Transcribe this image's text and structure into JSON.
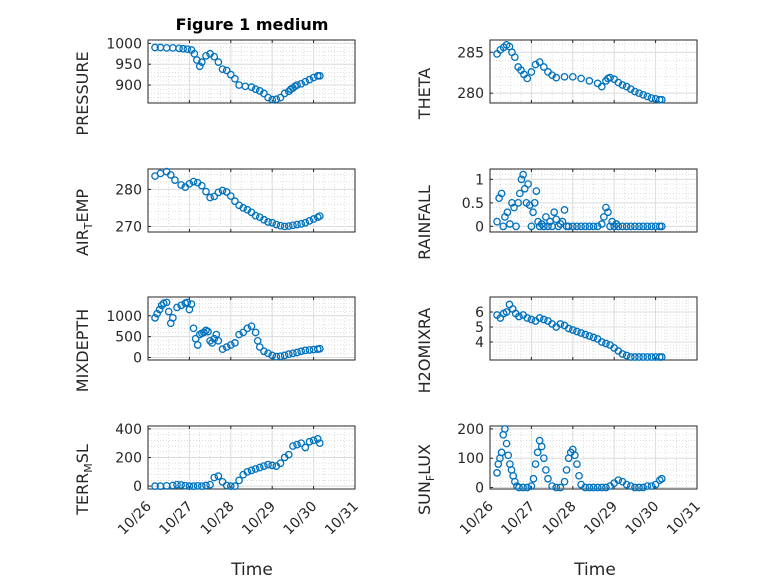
{
  "figure": {
    "title": "Figure 1 medium",
    "xlabel": "Time"
  },
  "chart_data": [
    {
      "type": "scatter",
      "ylabel": "PRESSURE",
      "ylim": [
        857,
        1008
      ],
      "yticks": [
        900,
        950,
        1000
      ],
      "x": [
        0.17,
        0.3,
        0.45,
        0.6,
        0.75,
        0.85,
        0.95,
        1.05,
        1.12,
        1.18,
        1.25,
        1.3,
        1.4,
        1.5,
        1.6,
        1.7,
        1.8,
        1.9,
        2.0,
        2.1,
        2.2,
        2.35,
        2.5,
        2.6,
        2.7,
        2.8,
        2.9,
        3.0,
        3.1,
        3.2,
        3.3,
        3.4,
        3.45,
        3.5,
        3.55,
        3.6,
        3.7,
        3.8,
        3.9,
        4.0,
        4.1,
        4.15
      ],
      "y": [
        990,
        990,
        989,
        989,
        988,
        987,
        986,
        984,
        975,
        960,
        945,
        955,
        970,
        975,
        968,
        955,
        938,
        935,
        925,
        915,
        900,
        897,
        895,
        890,
        886,
        880,
        870,
        865,
        866,
        870,
        880,
        885,
        890,
        893,
        897,
        900,
        903,
        908,
        913,
        918,
        922,
        922
      ]
    },
    {
      "type": "scatter",
      "ylabel": "THETA",
      "ylim": [
        278.8,
        286.5
      ],
      "yticks": [
        280,
        285
      ],
      "x": [
        0.17,
        0.25,
        0.33,
        0.4,
        0.47,
        0.53,
        0.6,
        0.68,
        0.75,
        0.82,
        0.9,
        1.0,
        1.1,
        1.2,
        1.3,
        1.4,
        1.5,
        1.6,
        1.8,
        2.0,
        2.2,
        2.4,
        2.6,
        2.7,
        2.8,
        2.85,
        2.9,
        3.0,
        3.1,
        3.2,
        3.3,
        3.4,
        3.5,
        3.6,
        3.7,
        3.8,
        3.9,
        4.0,
        4.1,
        4.15
      ],
      "y": [
        284.8,
        285.3,
        285.6,
        285.9,
        285.7,
        285.0,
        284.4,
        283.2,
        282.8,
        282.3,
        281.8,
        282.6,
        283.5,
        283.8,
        283.2,
        282.6,
        282.2,
        281.9,
        282.0,
        282.0,
        281.8,
        281.5,
        281.2,
        280.8,
        281.5,
        281.8,
        281.9,
        281.7,
        281.3,
        281.0,
        280.8,
        280.5,
        280.2,
        280.0,
        279.8,
        279.6,
        279.4,
        279.3,
        279.2,
        279.2
      ]
    },
    {
      "type": "scatter",
      "ylabel": "AIR_T_EMP",
      "ylim": [
        268.5,
        285.5
      ],
      "yticks": [
        270,
        280
      ],
      "x": [
        0.17,
        0.3,
        0.45,
        0.55,
        0.65,
        0.8,
        0.9,
        1.0,
        1.1,
        1.2,
        1.3,
        1.4,
        1.5,
        1.6,
        1.7,
        1.8,
        1.9,
        2.0,
        2.1,
        2.2,
        2.3,
        2.4,
        2.5,
        2.6,
        2.7,
        2.8,
        2.9,
        3.0,
        3.1,
        3.2,
        3.3,
        3.4,
        3.5,
        3.6,
        3.7,
        3.8,
        3.9,
        4.0,
        4.1,
        4.15
      ],
      "y": [
        283.6,
        284.3,
        284.8,
        283.9,
        282.5,
        281.2,
        280.6,
        281.5,
        282.1,
        281.8,
        281.0,
        279.4,
        277.8,
        278.1,
        279.2,
        279.7,
        279.3,
        278.2,
        276.8,
        275.7,
        275.0,
        274.5,
        273.8,
        272.9,
        272.5,
        271.8,
        271.2,
        271.0,
        270.5,
        270.2,
        270.0,
        270.1,
        270.3,
        270.5,
        270.7,
        271.0,
        271.5,
        272.0,
        272.5,
        272.8
      ]
    },
    {
      "type": "scatter",
      "ylabel": "RAINFALL",
      "ylim": [
        -0.12,
        1.22
      ],
      "yticks": [
        0,
        0.5,
        1
      ],
      "x": [
        0.17,
        0.22,
        0.28,
        0.32,
        0.36,
        0.42,
        0.48,
        0.53,
        0.58,
        0.63,
        0.68,
        0.72,
        0.76,
        0.8,
        0.84,
        0.88,
        0.92,
        0.96,
        1.0,
        1.04,
        1.08,
        1.12,
        1.16,
        1.2,
        1.25,
        1.3,
        1.35,
        1.4,
        1.45,
        1.5,
        1.55,
        1.6,
        1.65,
        1.7,
        1.75,
        1.8,
        1.85,
        1.9,
        2.0,
        2.1,
        2.2,
        2.3,
        2.4,
        2.5,
        2.6,
        2.7,
        2.75,
        2.8,
        2.85,
        2.9,
        2.95,
        3.0,
        3.05,
        3.1,
        3.2,
        3.3,
        3.4,
        3.5,
        3.6,
        3.7,
        3.8,
        3.9,
        4.0,
        4.1,
        4.15
      ],
      "y": [
        0.1,
        0.6,
        0.7,
        0.0,
        0.2,
        0.3,
        0.05,
        0.5,
        0.4,
        0.0,
        0.5,
        0.7,
        1.0,
        1.1,
        0.8,
        0.5,
        0.9,
        0.45,
        0.0,
        0.3,
        0.5,
        0.75,
        0.1,
        0.0,
        0.05,
        0.0,
        0.2,
        0.0,
        0.1,
        0.0,
        0.3,
        0.15,
        0.0,
        0.05,
        0.1,
        0.35,
        0.0,
        0.0,
        0.0,
        0.0,
        0.0,
        0.0,
        0.0,
        0.0,
        0.0,
        0.05,
        0.2,
        0.4,
        0.3,
        0.0,
        0.1,
        0.0,
        0.05,
        0.0,
        0.0,
        0.0,
        0.0,
        0.0,
        0.0,
        0.0,
        0.0,
        0.0,
        0.0,
        0.0,
        0.0
      ]
    },
    {
      "type": "scatter",
      "ylabel": "MIXDEPTH",
      "ylim": [
        -60,
        1450
      ],
      "yticks": [
        0,
        500,
        1000
      ],
      "x": [
        0.17,
        0.22,
        0.28,
        0.33,
        0.38,
        0.45,
        0.5,
        0.55,
        0.6,
        0.7,
        0.8,
        0.9,
        0.95,
        1.0,
        1.05,
        1.1,
        1.15,
        1.2,
        1.25,
        1.3,
        1.35,
        1.4,
        1.45,
        1.5,
        1.55,
        1.6,
        1.65,
        1.7,
        1.8,
        1.9,
        2.0,
        2.1,
        2.2,
        2.3,
        2.4,
        2.5,
        2.6,
        2.65,
        2.7,
        2.8,
        2.9,
        3.0,
        3.1,
        3.2,
        3.3,
        3.4,
        3.5,
        3.6,
        3.7,
        3.8,
        3.9,
        4.0,
        4.1,
        4.15
      ],
      "y": [
        950,
        1050,
        1150,
        1250,
        1300,
        1320,
        1100,
        820,
        950,
        1200,
        1250,
        1300,
        1320,
        1150,
        1280,
        700,
        450,
        300,
        550,
        580,
        600,
        650,
        620,
        400,
        350,
        450,
        550,
        400,
        200,
        250,
        300,
        350,
        550,
        600,
        700,
        750,
        600,
        400,
        250,
        150,
        100,
        50,
        20,
        30,
        50,
        80,
        100,
        120,
        150,
        170,
        180,
        190,
        200,
        210
      ]
    },
    {
      "type": "scatter",
      "ylabel": "H2OMIXRA",
      "ylim": [
        2.8,
        7.0
      ],
      "yticks": [
        4,
        5,
        6
      ],
      "x": [
        0.17,
        0.25,
        0.33,
        0.4,
        0.47,
        0.55,
        0.62,
        0.7,
        0.8,
        0.9,
        1.0,
        1.1,
        1.2,
        1.3,
        1.4,
        1.5,
        1.6,
        1.7,
        1.8,
        1.9,
        2.0,
        2.1,
        2.2,
        2.3,
        2.4,
        2.5,
        2.6,
        2.7,
        2.8,
        2.9,
        3.0,
        3.1,
        3.2,
        3.3,
        3.4,
        3.5,
        3.6,
        3.7,
        3.8,
        3.9,
        4.0,
        4.1,
        4.15
      ],
      "y": [
        5.8,
        5.6,
        5.9,
        6.0,
        6.5,
        6.2,
        5.9,
        5.7,
        5.8,
        5.6,
        5.5,
        5.4,
        5.6,
        5.5,
        5.4,
        5.2,
        5.0,
        5.2,
        5.1,
        4.9,
        4.8,
        4.7,
        4.6,
        4.5,
        4.4,
        4.3,
        4.2,
        4.0,
        3.9,
        3.8,
        3.6,
        3.4,
        3.2,
        3.1,
        3.0,
        3.0,
        3.0,
        3.0,
        3.0,
        3.0,
        3.0,
        3.0,
        3.0
      ]
    },
    {
      "type": "scatter",
      "ylabel": "TERR_M_SL",
      "ylim": [
        -20,
        420
      ],
      "yticks": [
        0,
        200,
        400
      ],
      "x": [
        0.17,
        0.3,
        0.45,
        0.6,
        0.7,
        0.8,
        0.9,
        1.0,
        1.1,
        1.2,
        1.3,
        1.4,
        1.5,
        1.6,
        1.7,
        1.8,
        1.9,
        2.0,
        2.1,
        2.2,
        2.3,
        2.4,
        2.5,
        2.6,
        2.7,
        2.8,
        2.9,
        3.0,
        3.1,
        3.2,
        3.3,
        3.4,
        3.5,
        3.6,
        3.7,
        3.8,
        3.9,
        4.0,
        4.1,
        4.15
      ],
      "y": [
        0,
        0,
        2,
        5,
        10,
        8,
        3,
        0,
        0,
        2,
        0,
        5,
        10,
        60,
        70,
        30,
        5,
        0,
        0,
        40,
        80,
        100,
        110,
        120,
        130,
        140,
        150,
        145,
        140,
        160,
        200,
        220,
        280,
        290,
        300,
        270,
        310,
        320,
        330,
        300
      ]
    },
    {
      "type": "scatter",
      "ylabel": "SUN_F_LUX",
      "ylim": [
        -5,
        210
      ],
      "yticks": [
        0,
        100,
        200
      ],
      "x": [
        0.17,
        0.2,
        0.24,
        0.28,
        0.32,
        0.36,
        0.4,
        0.44,
        0.48,
        0.52,
        0.56,
        0.6,
        0.65,
        0.7,
        0.8,
        0.9,
        1.0,
        1.05,
        1.1,
        1.15,
        1.2,
        1.25,
        1.3,
        1.35,
        1.4,
        1.5,
        1.6,
        1.7,
        1.8,
        1.85,
        1.9,
        1.95,
        2.0,
        2.05,
        2.1,
        2.15,
        2.2,
        2.3,
        2.4,
        2.5,
        2.6,
        2.7,
        2.8,
        2.9,
        3.0,
        3.1,
        3.2,
        3.3,
        3.4,
        3.5,
        3.6,
        3.7,
        3.8,
        3.9,
        4.0,
        4.1,
        4.15
      ],
      "y": [
        50,
        80,
        100,
        120,
        180,
        200,
        150,
        110,
        80,
        60,
        40,
        20,
        5,
        0,
        0,
        0,
        5,
        30,
        80,
        120,
        160,
        140,
        100,
        60,
        30,
        5,
        0,
        0,
        20,
        60,
        100,
        120,
        130,
        110,
        80,
        40,
        10,
        0,
        0,
        0,
        0,
        0,
        0,
        5,
        15,
        25,
        20,
        10,
        5,
        0,
        0,
        0,
        5,
        5,
        10,
        25,
        30
      ]
    }
  ],
  "x_axis": {
    "ticks": [
      0,
      1,
      2,
      3,
      4,
      5
    ],
    "labels": [
      "10/26",
      "10/27",
      "10/28",
      "10/29",
      "10/30",
      "10/31"
    ]
  }
}
